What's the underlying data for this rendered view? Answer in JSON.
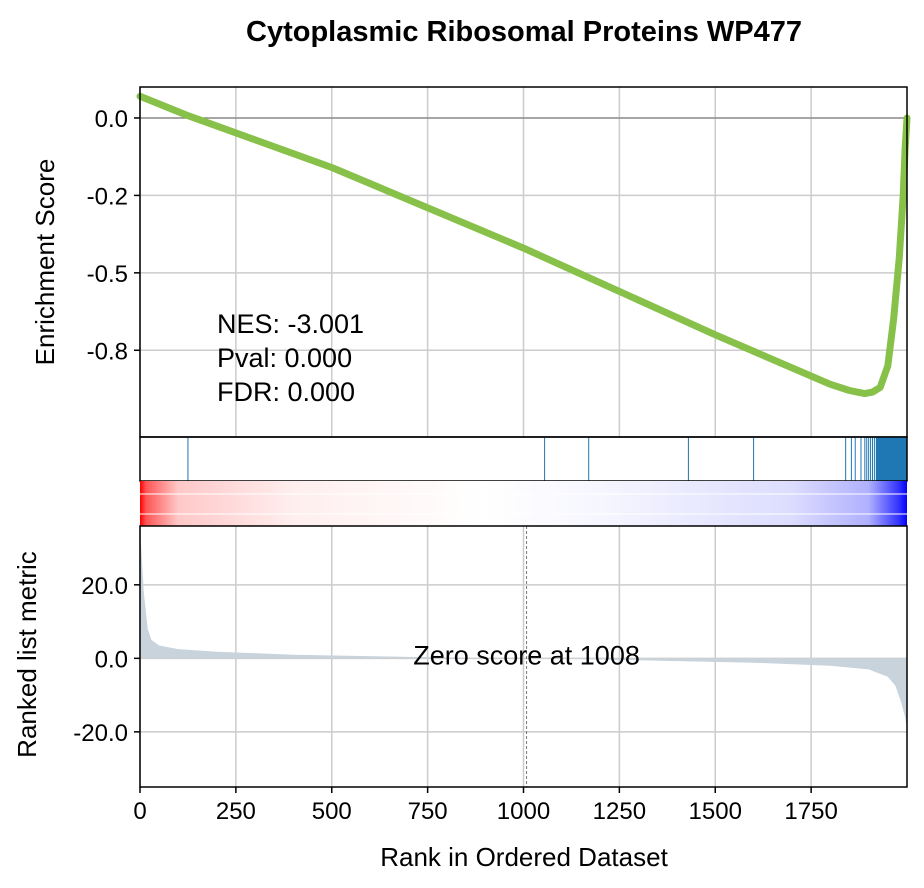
{
  "chart_data": {
    "type": "line",
    "title": "Cytoplasmic Ribosomal Proteins WP477",
    "xlabel": "Rank in Ordered Dataset",
    "xlim": [
      0,
      2000
    ],
    "x_ticks": [
      0,
      250,
      500,
      750,
      1000,
      1250,
      1500,
      1750
    ],
    "grid": true,
    "colors": {
      "es_line": "#88c14a",
      "hits": "#1f77b4",
      "metric_fill": "#c9d3dc",
      "heat_high": "#ff0000",
      "heat_low": "#0000ff"
    },
    "enrichment": {
      "ylabel": "Enrichment Score",
      "ylim": [
        -1.03,
        0.1
      ],
      "y_ticks": [
        {
          "value": 0.0,
          "label": "0.0"
        },
        {
          "value": -0.25,
          "label": "-0.2"
        },
        {
          "value": -0.5,
          "label": "-0.5"
        },
        {
          "value": -0.75,
          "label": "-0.8"
        }
      ],
      "stats": [
        "NES: -3.001",
        "Pval: 0.000",
        "FDR: 0.000"
      ],
      "es_curve": {
        "x": [
          0,
          120,
          500,
          1000,
          1500,
          1800,
          1850,
          1870,
          1890,
          1910,
          1930,
          1950,
          1965,
          1980,
          1990,
          1995,
          2000
        ],
        "y": [
          0.07,
          0.01,
          -0.16,
          -0.42,
          -0.7,
          -0.86,
          -0.88,
          -0.885,
          -0.89,
          -0.885,
          -0.87,
          -0.8,
          -0.65,
          -0.45,
          -0.25,
          -0.1,
          0.0
        ]
      },
      "hits": [
        0,
        125,
        1055,
        1170,
        1430,
        1600,
        1840,
        1855,
        1865,
        1880,
        1890,
        1895,
        1900,
        1905,
        1910,
        1915,
        1920,
        1925,
        1930,
        1935,
        1940,
        1945,
        1950,
        1955,
        1960,
        1965,
        1970,
        1975,
        1980,
        1985,
        1990,
        1995,
        2000
      ]
    },
    "ranked_metric": {
      "ylabel": "Ranked list metric",
      "ylim": [
        -35,
        36
      ],
      "y_ticks": [
        {
          "value": 20,
          "label": "20.0"
        },
        {
          "value": 0,
          "label": "0.0"
        },
        {
          "value": -20,
          "label": "-20.0"
        }
      ],
      "zero_cross_rank": 1008,
      "annotation": "Zero score at 1008",
      "curve": {
        "x": [
          0,
          5,
          10,
          20,
          30,
          50,
          100,
          200,
          400,
          700,
          1008,
          1300,
          1600,
          1800,
          1900,
          1950,
          1970,
          1985,
          1995,
          2000
        ],
        "y": [
          36,
          27,
          18,
          8,
          5,
          3.5,
          2.5,
          1.8,
          1.0,
          0.4,
          0.0,
          -0.5,
          -1.2,
          -2.0,
          -3.0,
          -5.0,
          -7.5,
          -12,
          -16,
          -19
        ]
      }
    }
  }
}
